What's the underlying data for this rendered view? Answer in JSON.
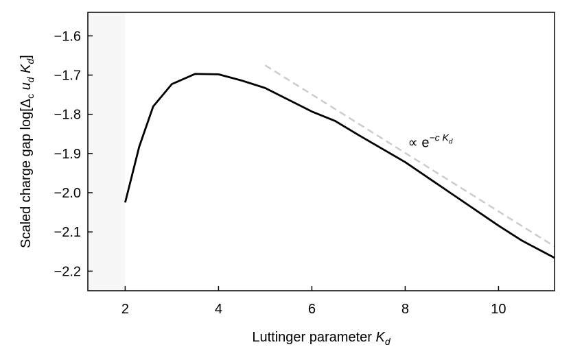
{
  "chart_data": {
    "type": "line",
    "xlabel": [
      "Luttinger parameter ",
      "K",
      "d"
    ],
    "ylabel": [
      "Scaled charge gap log[Δ",
      "c",
      " u",
      "d",
      " K",
      "d",
      "]"
    ],
    "annotation": {
      "text": [
        "∝ e",
        "−c K",
        "d"
      ],
      "x": 8.06,
      "y": -1.87
    },
    "x": [
      2,
      2.3,
      2.6,
      3,
      3.5,
      4,
      4.5,
      5,
      5.5,
      6,
      6.5,
      7,
      8,
      9,
      10,
      10.5,
      11.2
    ],
    "series": [
      {
        "color": "#000000",
        "values": [
          -2.025,
          -1.883,
          -1.78,
          -1.723,
          -1.697,
          -1.698,
          -1.714,
          -1.733,
          -1.763,
          -1.793,
          -1.817,
          -1.853,
          -1.922,
          -2.003,
          -2.084,
          -2.122,
          -2.166
        ]
      }
    ],
    "reference_line": {
      "color": "#cccccc",
      "x": [
        5,
        11.2
      ],
      "values": [
        -1.675,
        -2.137
      ]
    },
    "shaded_region": {
      "color": "#f7f7f7",
      "x": [
        1.2,
        2
      ]
    },
    "xlim": [
      1.2,
      11.2
    ],
    "xticks": [
      2,
      4,
      6,
      8,
      10
    ],
    "ylim": [
      -2.25,
      -1.54
    ],
    "yticks": [
      {
        "value": -2.2,
        "label": "−2.2"
      },
      {
        "value": -2.1,
        "label": "−2.1"
      },
      {
        "value": -2.0,
        "label": "−2.0"
      },
      {
        "value": -1.9,
        "label": "−1.9"
      },
      {
        "value": -1.8,
        "label": "−1.8"
      },
      {
        "value": -1.7,
        "label": "−1.7"
      },
      {
        "value": -1.6,
        "label": "−1.6"
      }
    ]
  }
}
